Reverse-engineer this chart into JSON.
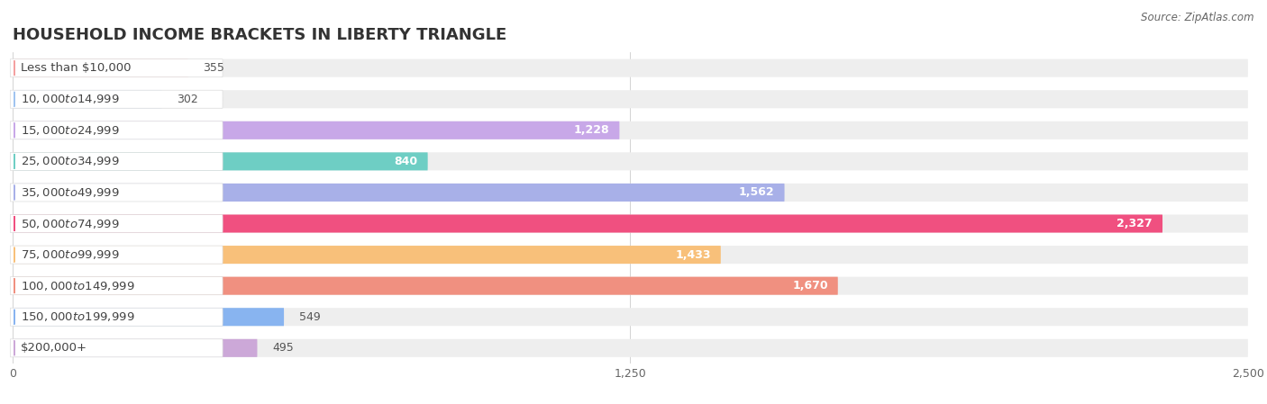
{
  "title": "HOUSEHOLD INCOME BRACKETS IN LIBERTY TRIANGLE",
  "source": "Source: ZipAtlas.com",
  "categories": [
    "Less than $10,000",
    "$10,000 to $14,999",
    "$15,000 to $24,999",
    "$25,000 to $34,999",
    "$35,000 to $49,999",
    "$50,000 to $74,999",
    "$75,000 to $99,999",
    "$100,000 to $149,999",
    "$150,000 to $199,999",
    "$200,000+"
  ],
  "values": [
    355,
    302,
    1228,
    840,
    1562,
    2327,
    1433,
    1670,
    549,
    495
  ],
  "bar_colors": [
    "#F4A0A0",
    "#A0C4F0",
    "#C8A8E8",
    "#6ECEC4",
    "#A8B0E8",
    "#F05080",
    "#F8C07A",
    "#F09080",
    "#88B4F0",
    "#CCA8D8"
  ],
  "label_dot_colors": [
    "#F4A0A0",
    "#A0C4F0",
    "#C8A8E8",
    "#6ECEC4",
    "#A8B0E8",
    "#F05080",
    "#F8C07A",
    "#F09080",
    "#88B4F0",
    "#CCA8D8"
  ],
  "bg_color": "#ffffff",
  "bar_bg_color": "#eeeeee",
  "xlim": [
    0,
    2500
  ],
  "xticks": [
    0,
    1250,
    2500
  ],
  "xtick_labels": [
    "0",
    "1,250",
    "2,500"
  ],
  "title_fontsize": 13,
  "label_fontsize": 9.5,
  "value_fontsize": 9,
  "bar_height": 0.58,
  "value_threshold": 700
}
